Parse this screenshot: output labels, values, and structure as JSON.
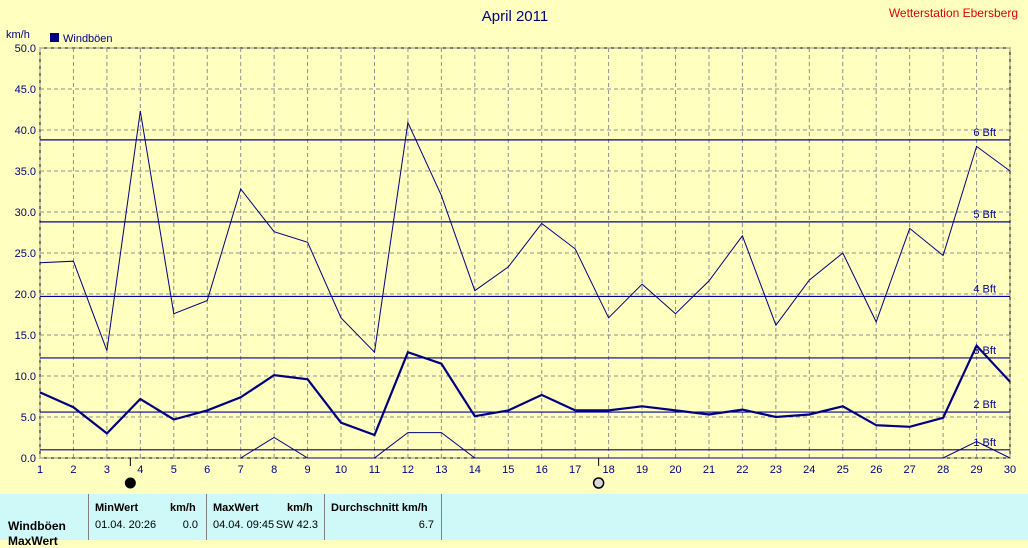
{
  "title": "April 2011",
  "station": "Wetterstation Ebersberg",
  "colors": {
    "background": "#ffffc0",
    "series": "#000080",
    "bft_line": "#0000a0",
    "grid": "#909090",
    "station": "#e00000",
    "stats_bg": "#cff8f8"
  },
  "chart_data": {
    "type": "line",
    "title": "April 2011",
    "ylabel": "km/h",
    "xlabel": "",
    "ylim": [
      0,
      50
    ],
    "xlim": [
      1,
      30
    ],
    "x_ticks": [
      1,
      2,
      3,
      4,
      5,
      6,
      7,
      8,
      9,
      10,
      11,
      12,
      13,
      14,
      15,
      16,
      17,
      18,
      19,
      20,
      21,
      22,
      23,
      24,
      25,
      26,
      27,
      28,
      29,
      30
    ],
    "y_ticks": [
      "0.0",
      "5.0",
      "10.0",
      "15.0",
      "20.0",
      "25.0",
      "30.0",
      "35.0",
      "40.0",
      "45.0",
      "50.0"
    ],
    "legend": {
      "position": "top-left",
      "entries": [
        "Windböen"
      ]
    },
    "grid": true,
    "series": [
      {
        "name": "Windböen",
        "style": "thick",
        "x": [
          1,
          2,
          3,
          4,
          5,
          6,
          7,
          8,
          9,
          10,
          11,
          12,
          13,
          14,
          15,
          16,
          17,
          18,
          19,
          20,
          21,
          22,
          23,
          24,
          25,
          26,
          27,
          28,
          29,
          30
        ],
        "values": [
          8.0,
          6.2,
          3.0,
          7.2,
          4.7,
          5.8,
          7.4,
          10.1,
          9.6,
          4.3,
          2.8,
          12.9,
          11.5,
          5.1,
          5.8,
          7.7,
          5.8,
          5.8,
          6.3,
          5.8,
          5.3,
          5.9,
          5.0,
          5.3,
          6.3,
          4.0,
          3.8,
          4.9,
          13.7,
          9.3
        ]
      },
      {
        "name": "",
        "style": "thin",
        "x": [
          1,
          2,
          3,
          4,
          5,
          6,
          7,
          8,
          9,
          10,
          11,
          12,
          13,
          14,
          15,
          16,
          17,
          18,
          19,
          20,
          21,
          22,
          23,
          24,
          25,
          26,
          27,
          28,
          29,
          30
        ],
        "values": [
          23.8,
          24.0,
          13.1,
          42.3,
          17.6,
          19.2,
          32.8,
          27.6,
          26.3,
          17.1,
          12.9,
          40.9,
          32.0,
          20.4,
          23.3,
          28.6,
          25.5,
          17.1,
          21.2,
          17.6,
          21.6,
          27.1,
          16.2,
          21.7,
          25.0,
          16.6,
          28.0,
          24.7,
          38.0,
          35.0
        ]
      },
      {
        "name": "",
        "style": "thin",
        "x": [
          7,
          8,
          9,
          11,
          12,
          13,
          14,
          28,
          29,
          30
        ],
        "values": [
          0.0,
          2.5,
          0.0,
          0.0,
          3.1,
          3.1,
          0.0,
          0.0,
          2.0,
          0.0
        ]
      }
    ],
    "annotations": [
      {
        "label": "1 Bft",
        "y": 1
      },
      {
        "label": "2 Bft",
        "y": 5.6
      },
      {
        "label": "3 Bft",
        "y": 12.2
      },
      {
        "label": "4 Bft",
        "y": 19.7
      },
      {
        "label": "5 Bft",
        "y": 28.8
      },
      {
        "label": "6 Bft",
        "y": 38.8
      }
    ],
    "moon_markers": [
      {
        "day": 4,
        "phase": "new"
      },
      {
        "day": 18,
        "phase": "full"
      }
    ]
  },
  "stats": {
    "row_label": "Windböen",
    "row2_label": "MaxWert",
    "min_header": "MinWert",
    "min_unit": "km/h",
    "min_time": "01.04.  20:26",
    "min_value": "0.0",
    "max_header": "MaxWert",
    "max_unit": "km/h",
    "max_time": "04.04.  09:45",
    "max_value": "SW 42.3",
    "avg_header": "Durchschnitt km/h",
    "avg_value": "6.7"
  }
}
